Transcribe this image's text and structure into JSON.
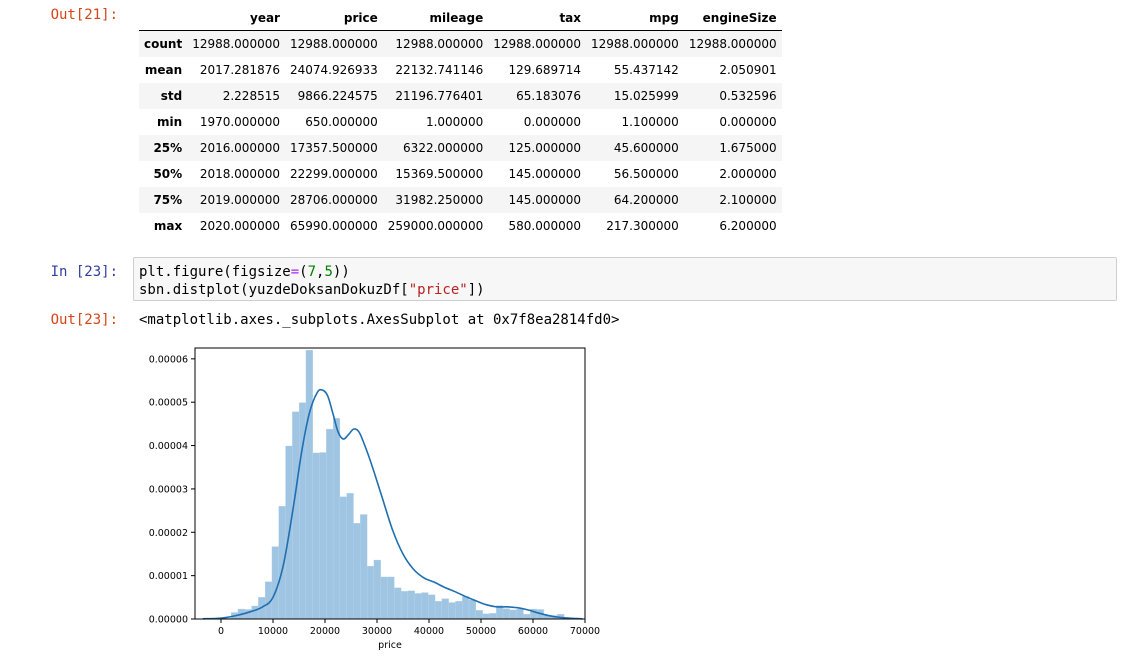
{
  "cells": {
    "out21_prompt": "Out[21]:",
    "in23_prompt": "In [23]:",
    "out23_prompt": "Out[23]:",
    "code_line1": [
      "plt.figure(figsize",
      "=",
      "(",
      "7",
      ",",
      "5",
      "))"
    ],
    "code_line2": [
      "sbn.distplot(yuzdeDoksanDokuzDf[",
      "\"price\"",
      "])"
    ],
    "repr_text": "<matplotlib.axes._subplots.AxesSubplot at 0x7f8ea2814fd0>"
  },
  "describe_table": {
    "columns": [
      "year",
      "price",
      "mileage",
      "tax",
      "mpg",
      "engineSize"
    ],
    "rows": [
      {
        "label": "count",
        "values": [
          "12988.000000",
          "12988.000000",
          "12988.000000",
          "12988.000000",
          "12988.000000",
          "12988.000000"
        ]
      },
      {
        "label": "mean",
        "values": [
          "2017.281876",
          "24074.926933",
          "22132.741146",
          "129.689714",
          "55.437142",
          "2.050901"
        ]
      },
      {
        "label": "std",
        "values": [
          "2.228515",
          "9866.224575",
          "21196.776401",
          "65.183076",
          "15.025999",
          "0.532596"
        ]
      },
      {
        "label": "min",
        "values": [
          "1970.000000",
          "650.000000",
          "1.000000",
          "0.000000",
          "1.100000",
          "0.000000"
        ]
      },
      {
        "label": "25%",
        "values": [
          "2016.000000",
          "17357.500000",
          "6322.000000",
          "125.000000",
          "45.600000",
          "1.675000"
        ]
      },
      {
        "label": "50%",
        "values": [
          "2018.000000",
          "22299.000000",
          "15369.500000",
          "145.000000",
          "56.500000",
          "2.000000"
        ]
      },
      {
        "label": "75%",
        "values": [
          "2019.000000",
          "28706.000000",
          "31982.250000",
          "145.000000",
          "64.200000",
          "2.100000"
        ]
      },
      {
        "label": "max",
        "values": [
          "2020.000000",
          "65990.000000",
          "259000.000000",
          "580.000000",
          "217.300000",
          "6.200000"
        ]
      }
    ]
  },
  "colors": {
    "out_prompt": "#d84315",
    "in_prompt": "#303f9f",
    "hist_fill": "#9fc5e3",
    "kde_line": "#1f6fb0"
  },
  "chart_data": {
    "type": "bar",
    "xlabel": "price",
    "ylabel": "",
    "xlim": [
      -5000,
      70000
    ],
    "ylim": [
      0,
      6.25e-05
    ],
    "x_ticks": [
      0,
      10000,
      20000,
      30000,
      40000,
      50000,
      60000,
      70000
    ],
    "y_ticks": [
      0,
      1e-05,
      2e-05,
      3e-05,
      4e-05,
      5e-05,
      6e-05
    ],
    "x_tick_labels": [
      "0",
      "10000",
      "20000",
      "30000",
      "40000",
      "50000",
      "60000",
      "70000"
    ],
    "y_tick_labels": [
      "0.00000",
      "0.00001",
      "0.00002",
      "0.00003",
      "0.00004",
      "0.00005",
      "0.00006"
    ],
    "histogram": {
      "bin_start": 650,
      "bin_width": 1307,
      "densities": [
        2e-07,
        1.5e-06,
        2.3e-06,
        2.2e-06,
        3e-06,
        5e-06,
        8.6e-06,
        1.67e-05,
        2.6e-05,
        3.99e-05,
        4.78e-05,
        4.99e-05,
        6.2e-05,
        3.83e-05,
        3.84e-05,
        4.38e-05,
        4.63e-05,
        2.82e-05,
        2.9e-05,
        2.21e-05,
        2.41e-05,
        1.22e-05,
        1.36e-05,
        9.7e-06,
        9.7e-06,
        7.2e-06,
        6.4e-06,
        6.5e-06,
        5.9e-06,
        6.1e-06,
        5.6e-06,
        4.1e-06,
        4.7e-06,
        3.8e-06,
        4.1e-06,
        5.2e-06,
        4.4e-06,
        2e-06,
        1.2e-06,
        1.3e-06,
        3.1e-06,
        2.4e-06,
        2.1e-06,
        2.3e-06,
        1.1e-06,
        2.3e-06,
        2.2e-06,
        9e-07,
        8e-07,
        1.1e-06
      ]
    },
    "kde": {
      "x": [
        -3500,
        0,
        3000,
        6000,
        8000,
        10000,
        12000,
        14000,
        15500,
        17000,
        18500,
        19500,
        20500,
        21500,
        22500,
        23500,
        24500,
        25500,
        26500,
        27500,
        29000,
        31000,
        33000,
        35000,
        37000,
        39000,
        41000,
        43000,
        45000,
        47000,
        49000,
        51000,
        53000,
        55000,
        57000,
        59000,
        61000,
        63000,
        65000,
        67000,
        69500
      ],
      "y": [
        5e-08,
        2e-07,
        8e-07,
        1.8e-06,
        2.8e-06,
        5e-06,
        1.25e-05,
        2.65e-05,
        3.85e-05,
        4.75e-05,
        5.22e-05,
        5.28e-05,
        5.15e-05,
        4.75e-05,
        4.32e-05,
        4.15e-05,
        4.25e-05,
        4.38e-05,
        4.32e-05,
        4.05e-05,
        3.55e-05,
        2.8e-05,
        2.05e-05,
        1.5e-05,
        1.15e-05,
        9.5e-06,
        8.5e-06,
        7.3e-06,
        6.3e-06,
        5.2e-06,
        4.2e-06,
        3.3e-06,
        2.8e-06,
        2.8e-06,
        2.6e-06,
        2.1e-06,
        1.4e-06,
        8e-07,
        4e-07,
        2e-07,
        5e-08
      ]
    }
  }
}
